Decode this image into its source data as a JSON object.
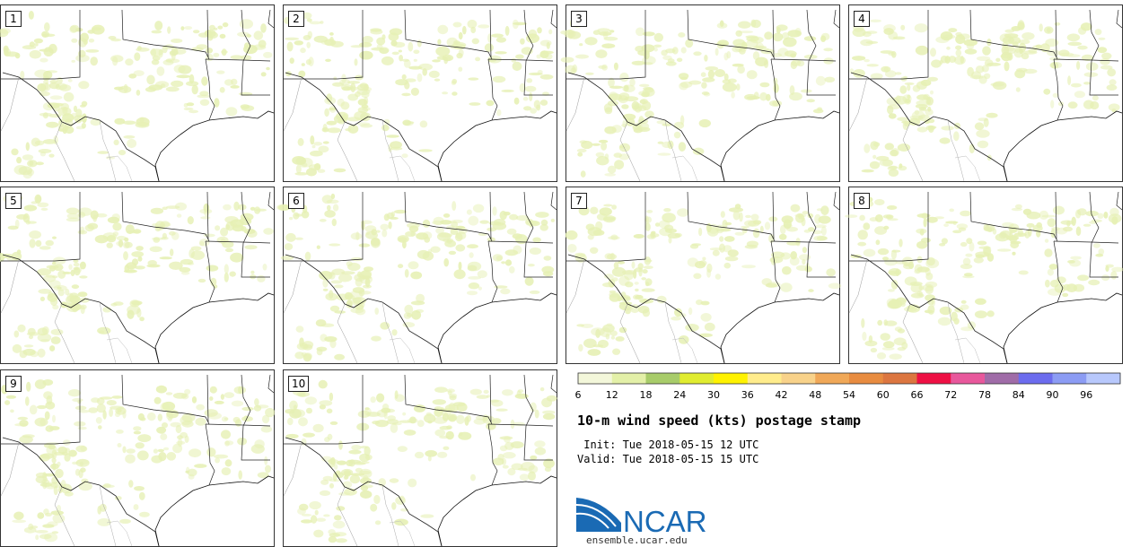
{
  "panels": [
    {
      "label": "1"
    },
    {
      "label": "2"
    },
    {
      "label": "3"
    },
    {
      "label": "4"
    },
    {
      "label": "5"
    },
    {
      "label": "6"
    },
    {
      "label": "7"
    },
    {
      "label": "8"
    },
    {
      "label": "9"
    },
    {
      "label": "10"
    }
  ],
  "colorbar": {
    "tick_labels": [
      "6",
      "12",
      "18",
      "24",
      "30",
      "36",
      "42",
      "48",
      "54",
      "60",
      "66",
      "72",
      "78",
      "84",
      "90",
      "96"
    ],
    "colors": [
      "#f3f7da",
      "#e3f0a8",
      "#a8cc6a",
      "#e0ec30",
      "#fff200",
      "#ffec8c",
      "#f8d28a",
      "#f0a858",
      "#e88c40",
      "#dc7640",
      "#ee1044",
      "#e8589c",
      "#a06ca8",
      "#6c6cee",
      "#8c9cf4",
      "#b8c8fc"
    ],
    "tick_positions": [
      0,
      1,
      2,
      3,
      4,
      5,
      6,
      7,
      8,
      9,
      10,
      11,
      12,
      13,
      14,
      15
    ],
    "n_bins": 16,
    "map_fill": "#e6f0b4"
  },
  "title": "10-m wind speed (kts) postage stamp",
  "init_text": " Init: Tue 2018-05-15 12 UTC",
  "valid_text": "Valid: Tue 2018-05-15 15 UTC",
  "logo": {
    "text": "NCAR",
    "url": "ensemble.ucar.edu",
    "color": "#1a6ab4"
  }
}
